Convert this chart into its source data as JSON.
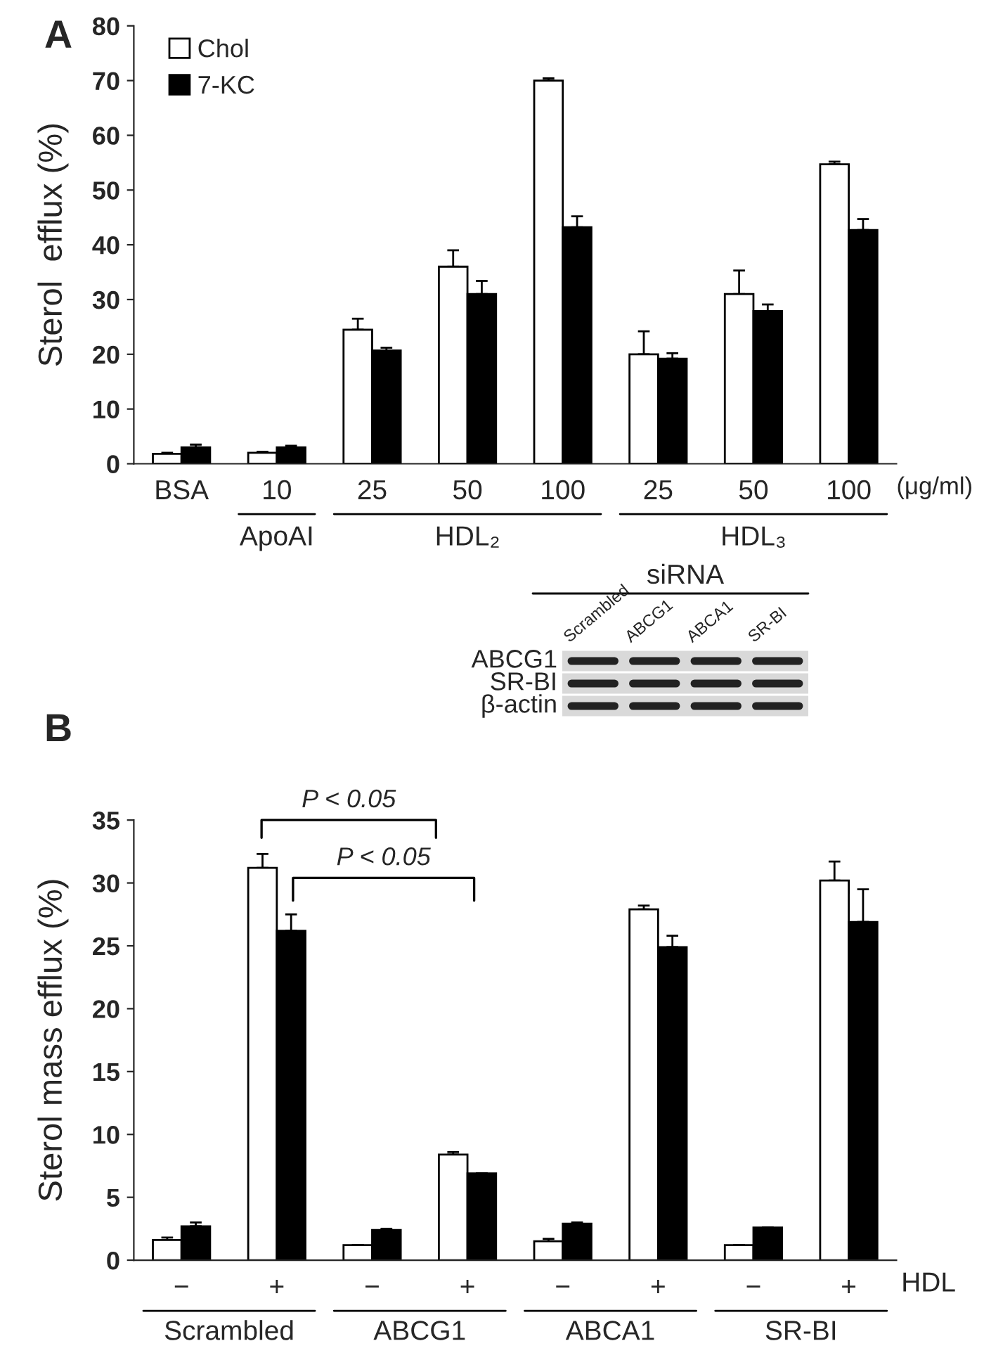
{
  "chart_data": [
    {
      "type": "bar",
      "ylabel": "Sterol  efflux (%)",
      "categories": [
        "BSA",
        "10",
        "25",
        "50",
        "100",
        "25",
        "50",
        "100"
      ],
      "series": [
        {
          "name": "Chol",
          "color": "#ffffff",
          "values": [
            1.8,
            2.0,
            24.5,
            36,
            70,
            20,
            31,
            54.7
          ],
          "errors": [
            0.2,
            0.2,
            2,
            3,
            0.4,
            4.2,
            4.3,
            0.5
          ]
        },
        {
          "name": "7-KC",
          "color": "#000000",
          "values": [
            3.0,
            3.0,
            20.7,
            31,
            43.2,
            19.2,
            27.9,
            42.7
          ],
          "errors": [
            0.5,
            0.3,
            0.5,
            2.4,
            2,
            1,
            1.2,
            2
          ]
        }
      ],
      "ylim": [
        0,
        80
      ],
      "yticks": [
        0,
        10,
        20,
        30,
        40,
        50,
        60,
        70,
        80
      ],
      "legend": "top left",
      "annotations": [
        "A",
        "(μg/ml)",
        "ApoAI",
        "HDL₂",
        "HDL₃"
      ]
    },
    {
      "type": "bar",
      "ylabel": "Sterol mass efflux (%)",
      "categories": [
        "−",
        "+",
        "−",
        "+",
        "−",
        "+",
        "−",
        "+"
      ],
      "series": [
        {
          "color": "#ffffff",
          "values": [
            1.6,
            31.2,
            1.2,
            8.4,
            1.5,
            27.9,
            1.2,
            30.2
          ],
          "errors": [
            0.2,
            1.1,
            0,
            0.2,
            0.2,
            0.3,
            0,
            1.5
          ]
        },
        {
          "color": "#000000",
          "values": [
            2.7,
            26.2,
            2.4,
            6.9,
            2.9,
            24.9,
            2.6,
            26.9
          ],
          "errors": [
            0.3,
            1.3,
            0.1,
            0,
            0.1,
            0.9,
            0,
            2.6
          ]
        }
      ],
      "ylim": [
        0,
        35
      ],
      "yticks": [
        0,
        5,
        10,
        15,
        20,
        25,
        30,
        35
      ],
      "annotations": [
        "B",
        "HDL",
        "Scrambled",
        "ABCG1",
        "ABCA1",
        "SR-BI",
        "siRNA",
        "Scrambled",
        "ABCG1",
        "ABCA1",
        "SR-BI",
        "ABCG1",
        "SR-BI",
        "β-actin",
        "P < 0.05",
        "P < 0.05"
      ]
    }
  ]
}
